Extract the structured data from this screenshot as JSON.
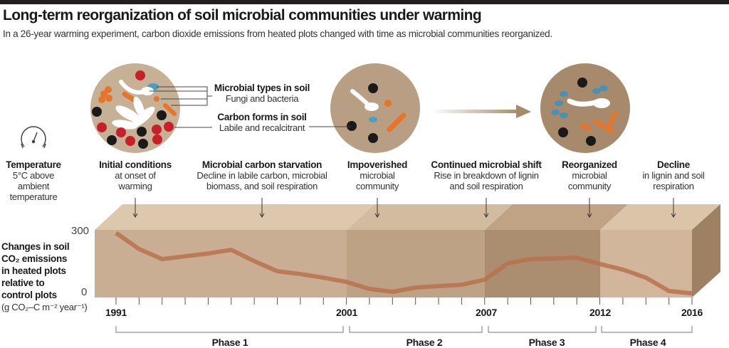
{
  "title": "Long-term reorganization of soil microbial communities under warming",
  "subtitle": "In a 26-year warming experiment, carbon dioxide emissions from heated plots changed with time as microbial communities reorganized.",
  "legend": {
    "microbial": {
      "title": "Microbial types in soil",
      "sub": "Fungi and bacteria"
    },
    "carbon": {
      "title": "Carbon forms in soil",
      "sub": "Labile and recalcitrant"
    },
    "carbon_symbol": "C"
  },
  "stages": [
    {
      "title": "Temperature",
      "lines": [
        "5°C above",
        "ambient",
        "temperature"
      ]
    },
    {
      "title": "Initial conditions",
      "lines": [
        "at onset of",
        "warming"
      ]
    },
    {
      "title": "Microbial carbon starvation",
      "lines": [
        "Decline in labile carbon, microbial",
        "biomass, and soil respiration"
      ]
    },
    {
      "title": "Impoverished",
      "lines": [
        "microbial",
        "community"
      ]
    },
    {
      "title": "Continued microbial shift",
      "lines": [
        "Rise in breakdown of lignin",
        "and soil respiration"
      ]
    },
    {
      "title": "Reorganized",
      "lines": [
        "microbial",
        "community"
      ]
    },
    {
      "title": "Decline",
      "lines": [
        "in lignin and soil",
        "respiration"
      ]
    }
  ],
  "yaxis": {
    "label_lines": [
      "Changes in soil",
      "CO₂ emissions",
      "in heated plots",
      "relative to",
      "control plots"
    ],
    "units": "(g CO₂–C m⁻² year⁻¹)",
    "ticks": [
      "300",
      "0"
    ]
  },
  "year_labels": [
    "1991",
    "2001",
    "2007",
    "2012",
    "2016"
  ],
  "phases": [
    "Phase 1",
    "Phase 2",
    "Phase 3",
    "Phase 4"
  ],
  "colors": {
    "line": "#b8714e",
    "phase1": "#c9ae93",
    "phase2": "#bea285",
    "phase3": "#ab8d70",
    "phase4": "#d1b69b"
  },
  "chart_data": {
    "type": "line",
    "xlabel": "",
    "ylabel": "Changes in soil CO₂ emissions in heated plots relative to control plots (g CO₂–C m⁻² year⁻¹)",
    "xlim": [
      1991,
      2016
    ],
    "ylim": [
      0,
      300
    ],
    "x": [
      1991,
      1992,
      1993,
      1994,
      1995,
      1996,
      1997,
      1998,
      1999,
      2000,
      2001,
      2002,
      2003,
      2004,
      2005,
      2006,
      2007,
      2008,
      2009,
      2010,
      2011,
      2012,
      2013,
      2014,
      2015,
      2016
    ],
    "y": [
      292,
      212,
      162,
      176,
      190,
      208,
      152,
      102,
      88,
      70,
      49,
      14,
      0,
      21,
      28,
      35,
      60,
      141,
      162,
      165,
      169,
      138,
      110,
      70,
      4,
      -8
    ]
  }
}
